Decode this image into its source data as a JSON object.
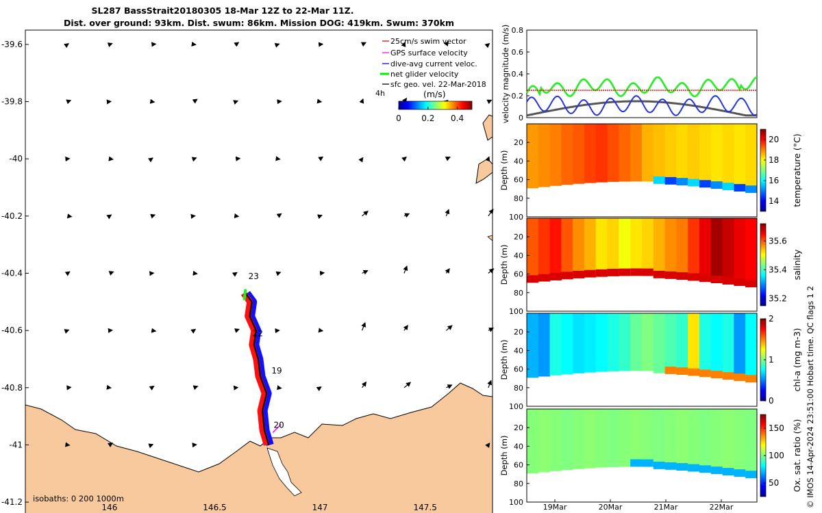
{
  "chart_data": [
    {
      "type": "map",
      "title_line1": "SL287 BassStrait20180305 18-Mar 12Z to 22-Mar 11Z.",
      "title_line2": "Dist. over ground: 93km. Dist. swum: 86km. Mission DOG: 419km. Swum: 370km",
      "xlim": [
        145.6,
        147.82
      ],
      "ylim": [
        -41.25,
        -39.55
      ],
      "x_ticks": [
        146,
        146.5,
        147,
        147.5
      ],
      "x_tick_labels": [
        "146",
        "146.5",
        "147",
        "147.5"
      ],
      "y_ticks": [
        -39.6,
        -39.8,
        -40,
        -40.2,
        -40.4,
        -40.6,
        -40.8,
        -41,
        -41.2
      ],
      "y_tick_labels": [
        "-39.6",
        "-39.8",
        "-40",
        "-40.2",
        "-40.4",
        "-40.6",
        "-40.8",
        "-41",
        "-41.2"
      ],
      "legend": [
        {
          "label": "25cm/s swim vector",
          "color": "#ff0000"
        },
        {
          "label": "GPS surface velocity",
          "color": "#ff00ff"
        },
        {
          "label": "dive-avg current veloc.",
          "color": "#0000ff"
        },
        {
          "label": "net glider velocity",
          "color": "#00ee00"
        },
        {
          "label": "sfc geo. vel. 22-Mar-2018",
          "color": "#000000"
        }
      ],
      "legend_note": "4h",
      "colorbar": {
        "label": "(m/s)",
        "ticks": [
          0,
          0.2,
          0.4
        ],
        "tick_labels": [
          "0",
          "0.2",
          "0.4"
        ],
        "range": [
          0,
          0.5
        ]
      },
      "track_labels": [
        {
          "text": "23",
          "lon": 146.66,
          "lat": -40.42
        },
        {
          "text": "22",
          "lon": 146.68,
          "lat": -40.62
        },
        {
          "text": "19",
          "lon": 146.77,
          "lat": -40.75
        },
        {
          "text": "20",
          "lon": 146.78,
          "lat": -40.94
        }
      ],
      "track": {
        "lon": [
          146.75,
          146.73,
          146.72,
          146.74,
          146.71,
          146.7,
          146.68,
          146.69,
          146.66,
          146.67,
          146.64
        ],
        "lat": [
          -41.0,
          -40.95,
          -40.88,
          -40.82,
          -40.76,
          -40.7,
          -40.65,
          -40.6,
          -40.55,
          -40.5,
          -40.47
        ]
      },
      "isobaths_label": "isobaths: 0   200  1000m"
    },
    {
      "type": "line",
      "ylabel": "velocity magnitude (m/s)",
      "ylim": [
        0,
        0.8
      ],
      "y_ticks": [
        0,
        0.2,
        0.4,
        0.6,
        0.8
      ],
      "y_tick_labels": [
        "0",
        "0.2",
        "0.4",
        "0.6",
        "0.8"
      ],
      "series": [
        {
          "name": "net glider velocity",
          "color": "#22ee22"
        },
        {
          "name": "dive-avg current veloc.",
          "color": "#2233dd"
        },
        {
          "name": "sfc geo. vel.",
          "color": "#333333"
        },
        {
          "name": "25cm/s swim vector",
          "color": "#ff0000",
          "value": 0.25
        }
      ]
    },
    {
      "type": "heatmap",
      "variable": "temperature",
      "colorbar_label": "temperature (°C)",
      "colorbar_ticks": [
        14,
        16,
        18,
        20
      ],
      "colorbar_tick_labels": [
        "14",
        "16",
        "18",
        "20"
      ],
      "crange": [
        13,
        21
      ],
      "ylabel": "Depth (m)",
      "ylim": [
        0,
        100
      ],
      "y_ticks": [
        20,
        40,
        60,
        80,
        100
      ],
      "y_tick_labels": [
        "20",
        "40",
        "60",
        "80",
        "100"
      ],
      "bands": [
        18.8,
        18.9,
        19.0,
        19.2,
        19.3,
        19.5,
        19.6,
        19.4,
        19.2,
        19.0,
        18.6,
        18.5,
        18.4,
        18.3,
        18.4,
        18.3,
        18.2,
        18.3,
        18.2,
        18.3
      ]
    },
    {
      "type": "heatmap",
      "variable": "salinity",
      "colorbar_label": "salinity",
      "colorbar_ticks": [
        35.2,
        35.4,
        35.6
      ],
      "colorbar_tick_labels": [
        "35.2",
        "35.4",
        "35.6"
      ],
      "crange": [
        35.15,
        35.72
      ],
      "ylabel": "Depth (m)",
      "ylim": [
        0,
        100
      ],
      "y_ticks": [
        20,
        40,
        60,
        80,
        100
      ],
      "y_tick_labels": [
        "20",
        "40",
        "60",
        "80",
        "100"
      ],
      "bands": [
        35.6,
        35.62,
        35.64,
        35.6,
        35.57,
        35.55,
        35.52,
        35.53,
        35.5,
        35.52,
        35.53,
        35.55,
        35.57,
        35.58,
        35.62,
        35.66,
        35.7,
        35.68,
        35.66,
        35.65
      ]
    },
    {
      "type": "heatmap",
      "variable": "chl-a",
      "colorbar_label": "chl-a (mg m-3)",
      "colorbar_ticks": [
        0,
        1,
        2
      ],
      "colorbar_tick_labels": [
        "0",
        "1",
        "2"
      ],
      "crange": [
        0,
        2
      ],
      "ylabel": "Depth (m)",
      "ylim": [
        0,
        100
      ],
      "y_ticks": [
        20,
        40,
        60,
        80,
        100
      ],
      "y_tick_labels": [
        "20",
        "40",
        "60",
        "80",
        "100"
      ],
      "bands": [
        0.6,
        0.55,
        0.8,
        0.75,
        0.7,
        0.72,
        0.75,
        0.8,
        0.85,
        0.95,
        1.0,
        0.95,
        0.9,
        0.85,
        1.3,
        0.8,
        0.75,
        0.8,
        0.55,
        0.75
      ]
    },
    {
      "type": "heatmap",
      "variable": "oxygen",
      "colorbar_label": "Ox. sat. ratio (%)",
      "colorbar_ticks": [
        50,
        100,
        150
      ],
      "colorbar_tick_labels": [
        "50",
        "100",
        "150"
      ],
      "crange": [
        25,
        175
      ],
      "ylabel": "Depth (m)",
      "ylim": [
        0,
        100
      ],
      "y_ticks": [
        20,
        40,
        60,
        80,
        100
      ],
      "y_tick_labels": [
        "20",
        "40",
        "60",
        "80",
        "100"
      ],
      "bands": [
        101,
        102,
        101,
        100,
        101,
        102,
        101,
        100,
        101,
        102,
        101,
        100,
        101,
        102,
        101,
        100,
        101,
        102,
        101,
        100
      ]
    }
  ],
  "time_axis": {
    "tick_labels": [
      "19Mar",
      "20Mar",
      "21Mar",
      "22Mar"
    ]
  },
  "footer": "© IMOS 14-Apr-2024 23:51:00 Hobart time. QC flags 1  2",
  "colors": {
    "land": "#f8c99c",
    "ocean": "#ffffff"
  }
}
